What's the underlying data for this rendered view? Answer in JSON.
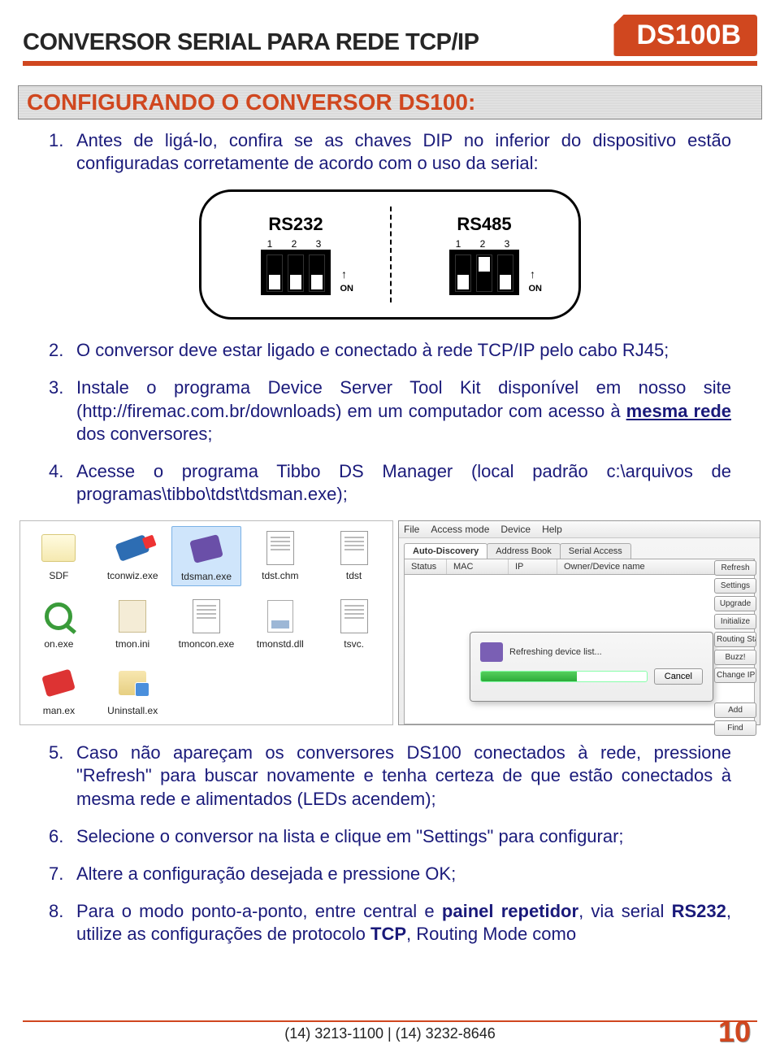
{
  "header": {
    "title": "CONVERSOR SERIAL PARA REDE TCP/IP",
    "badge": "DS100B"
  },
  "section_title": "CONFIGURANDO O CONVERSOR DS100:",
  "dip": {
    "left_label": "RS232",
    "right_label": "RS485",
    "nums": "1 2 3",
    "on_label": "ON",
    "left_positions": [
      "down",
      "down",
      "down"
    ],
    "right_positions": [
      "down",
      "up",
      "down"
    ]
  },
  "steps": {
    "s1": "Antes de ligá-lo, confira se as chaves DIP no inferior do dispositivo estão configuradas corretamente de acordo com o uso da serial:",
    "s2": "O conversor deve estar ligado e conectado à rede TCP/IP pelo cabo RJ45;",
    "s3a": "Instale o programa Device Server Tool Kit disponível em nosso site (http://firemac.com.br/downloads) em um computador com acesso à ",
    "s3b": "mesma rede",
    "s3c": " dos conversores;",
    "s4": "Acesse o programa Tibbo DS Manager (local padrão c:\\arquivos de programas\\tibbo\\tdst\\tdsman.exe);",
    "s5": "Caso não apareçam os conversores DS100 conectados à rede, pressione \"Refresh\" para buscar novamente e tenha certeza de que estão conectados à mesma rede e alimentados (LEDs acendem);",
    "s6": "Selecione o conversor na lista e clique em \"Settings\" para configurar;",
    "s7": "Altere a configuração desejada e pressione OK;",
    "s8a": "Para o modo ponto-a-ponto, entre central e ",
    "s8b": "painel repetidor",
    "s8c": ", via serial ",
    "s8d": "RS232",
    "s8e": ", utilize as configurações de protocolo ",
    "s8f": "TCP",
    "s8g": ", Routing Mode como"
  },
  "explorer": {
    "files": [
      {
        "label": "SDF",
        "icon": "folder"
      },
      {
        "label": "tconwiz.exe",
        "icon": "connector"
      },
      {
        "label": "tdsman.exe",
        "icon": "purple",
        "selected": true
      },
      {
        "label": "tdst.chm",
        "icon": "doc"
      },
      {
        "label": "tdst",
        "icon": "doc"
      },
      {
        "label": "on.exe",
        "icon": "mag"
      },
      {
        "label": "tmon.ini",
        "icon": "gear"
      },
      {
        "label": "tmoncon.exe",
        "icon": "doc"
      },
      {
        "label": "tmonstd.dll",
        "icon": "dll"
      },
      {
        "label": "tsvc.",
        "icon": "doc"
      },
      {
        "label": "man.ex",
        "icon": "red"
      },
      {
        "label": "Uninstall.ex",
        "icon": "box"
      }
    ]
  },
  "window": {
    "menu": [
      "File",
      "Access mode",
      "Device",
      "Help"
    ],
    "tabs": [
      "Auto-Discovery",
      "Address Book",
      "Serial Access"
    ],
    "columns": {
      "c1": "Status",
      "c2": "MAC",
      "c3": "IP",
      "c4": "Owner/Device name"
    },
    "buttons": [
      "Refresh",
      "Settings",
      "Upgrade",
      "Initialize",
      "Routing Sta",
      "Buzz!",
      "Change IP",
      "Add",
      "Find"
    ],
    "dialog_text": "Refreshing device list...",
    "dialog_cancel": "Cancel"
  },
  "footer": {
    "phones": "(14) 3213-1100 | (14) 3232-8646",
    "page": "10"
  },
  "colors": {
    "accent": "#d0471f",
    "body_text": "#1a1a7a"
  }
}
